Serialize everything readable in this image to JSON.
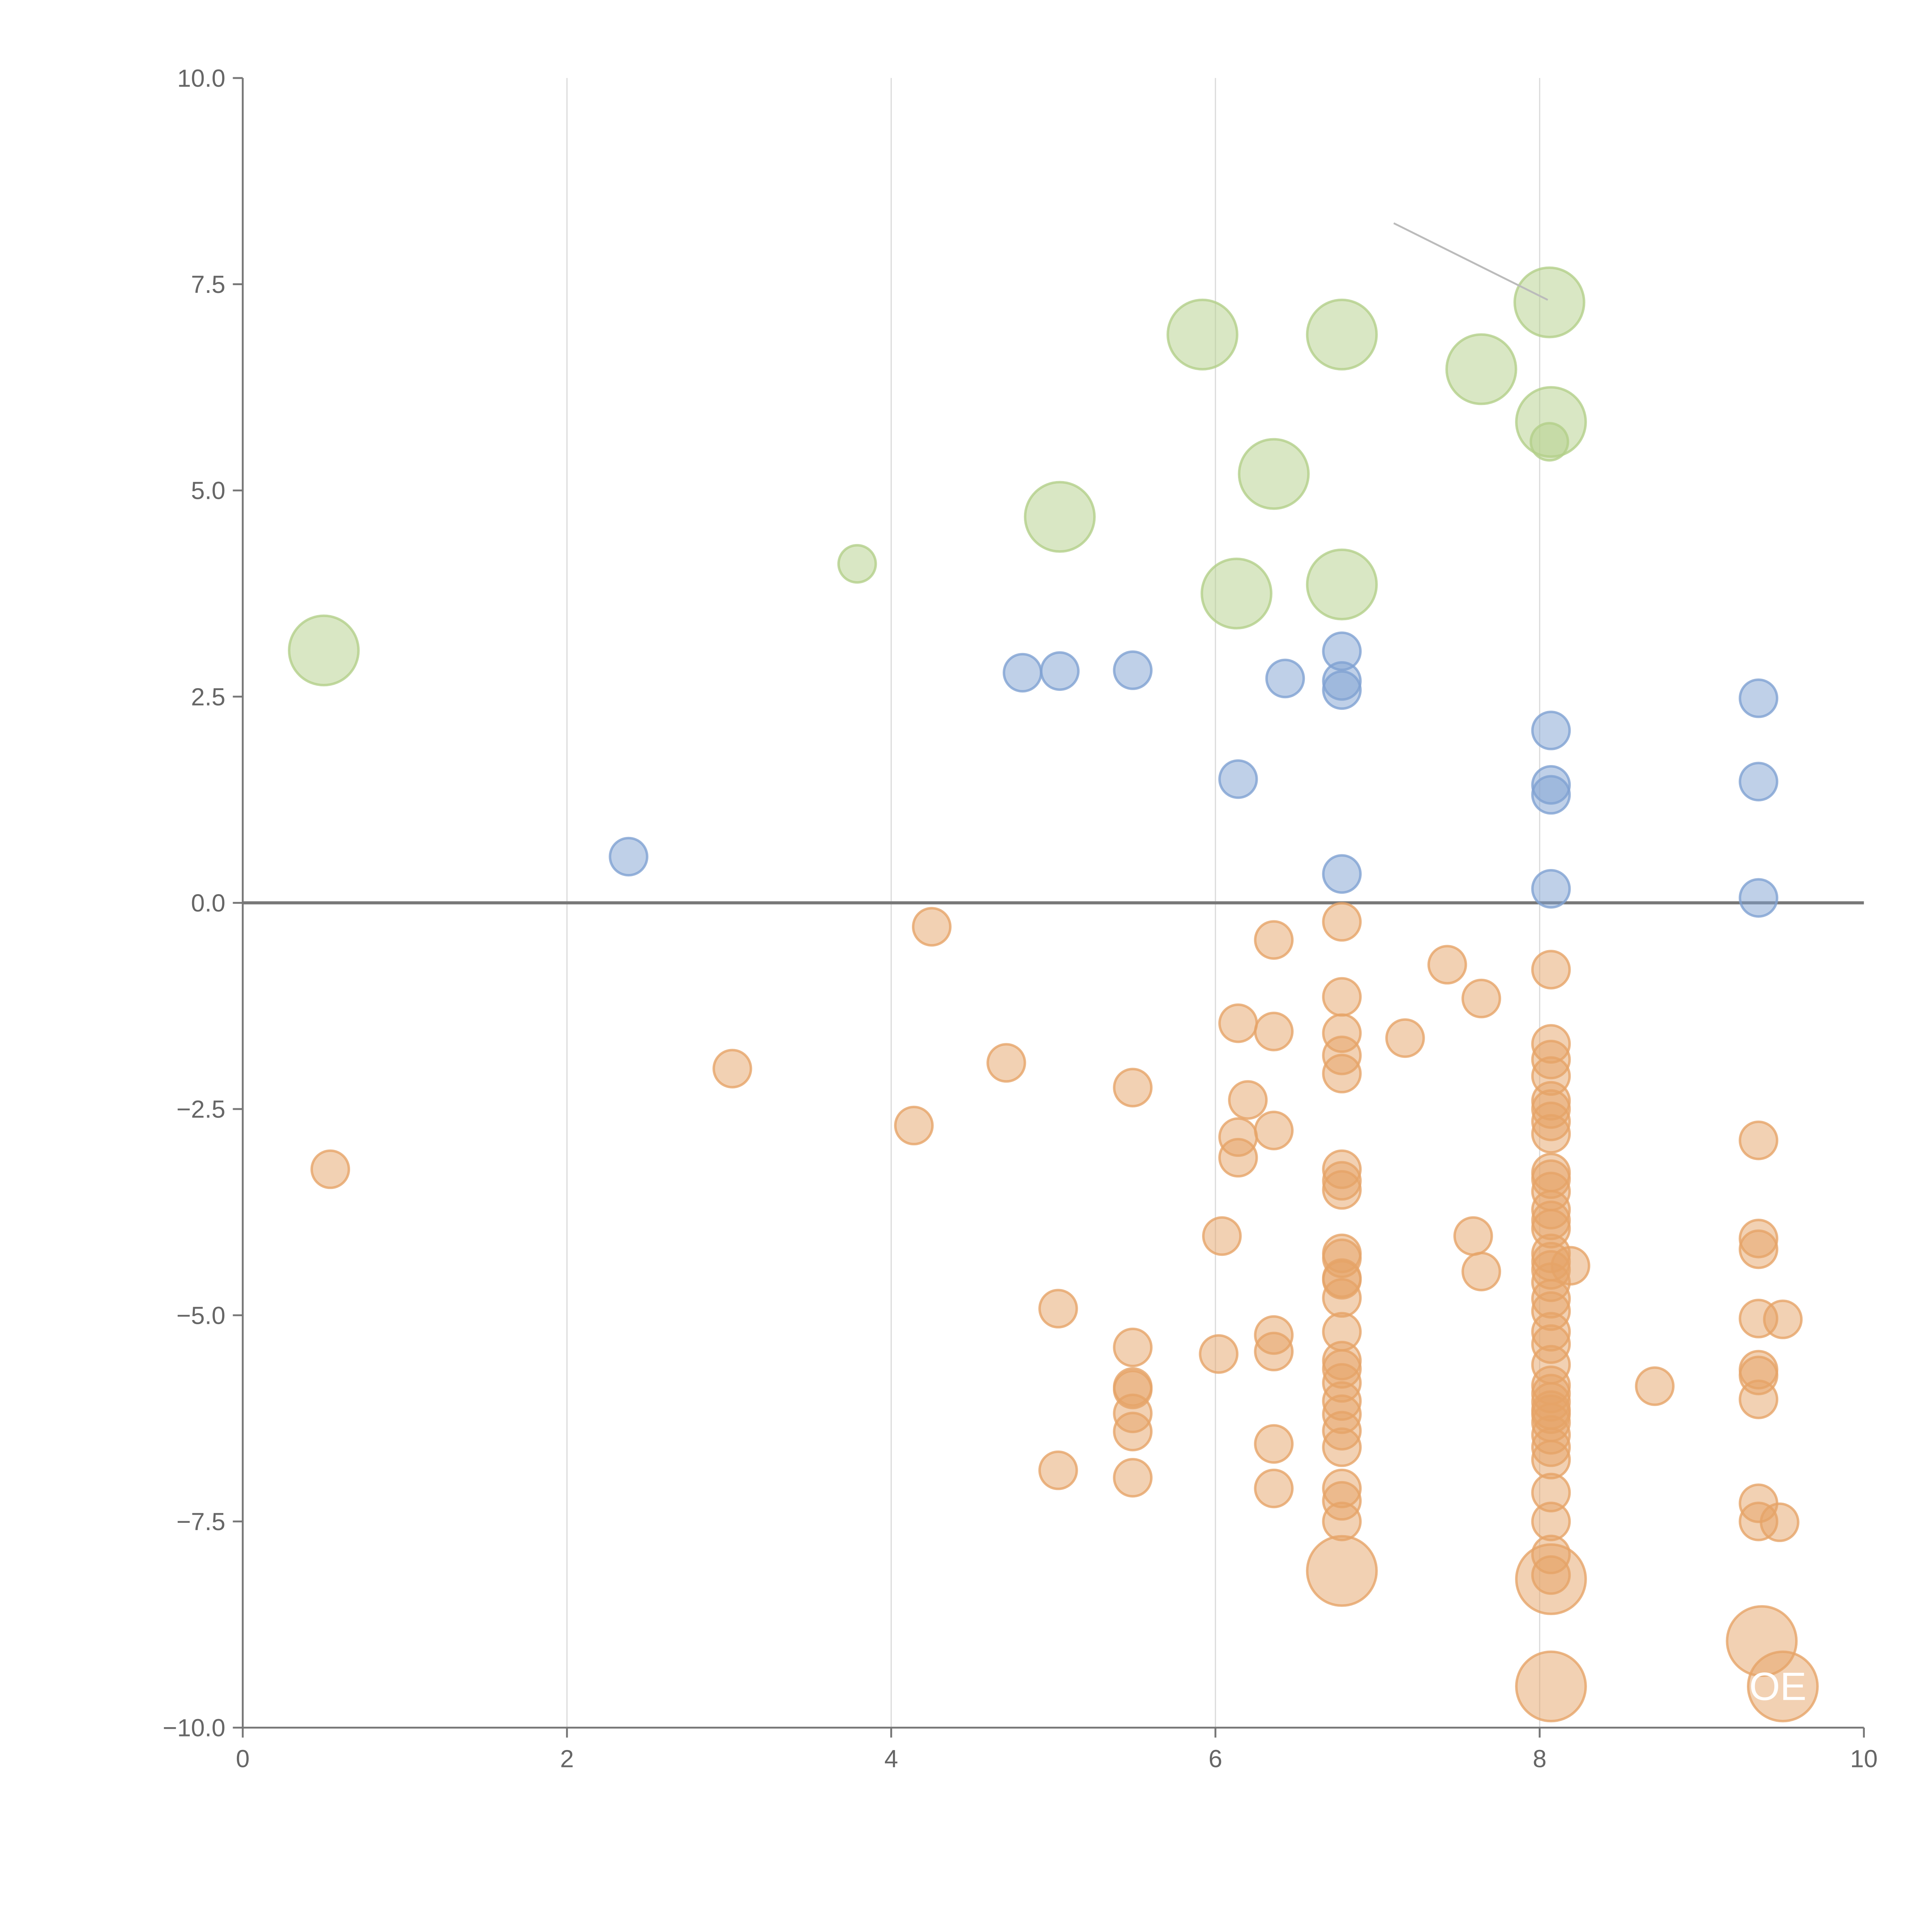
{
  "chart_data": {
    "type": "scatter",
    "title": "",
    "xlabel": "",
    "ylabel": "",
    "xlim": [
      0,
      10
    ],
    "ylim": [
      -10,
      10
    ],
    "grid": "vertical",
    "xticks": [
      0,
      2,
      4,
      6,
      8,
      10
    ],
    "xtick_labels": [
      "0",
      "2",
      "4",
      "6",
      "8",
      "10"
    ],
    "yticks": [
      10,
      7.5,
      5,
      2.5,
      0,
      -2.5,
      -5,
      -7.5,
      -10
    ],
    "ytick_labels": [
      "10.0",
      "7.5",
      "5.0",
      "2.5",
      "0.0",
      "−2.5",
      "−5.0",
      "−7.5",
      "−10.0"
    ],
    "series": [
      {
        "name": "green",
        "color": "#b3d08a",
        "points": [
          [
            0.5,
            3.06,
            2
          ],
          [
            3.79,
            4.11,
            1
          ],
          [
            5.04,
            4.68,
            2
          ],
          [
            5.92,
            6.89,
            2
          ],
          [
            6.78,
            6.89,
            2
          ],
          [
            6.13,
            3.75,
            2
          ],
          [
            6.36,
            5.2,
            2
          ],
          [
            6.78,
            3.86,
            2
          ],
          [
            7.64,
            6.47,
            2
          ],
          [
            8.06,
            7.28,
            2
          ],
          [
            8.07,
            5.83,
            2
          ],
          [
            8.06,
            5.59,
            1
          ]
        ]
      },
      {
        "name": "blue",
        "color": "#7fa1d2",
        "points": [
          [
            2.38,
            0.56,
            1
          ],
          [
            4.81,
            2.79,
            1
          ],
          [
            5.04,
            2.81,
            1
          ],
          [
            5.49,
            2.82,
            1
          ],
          [
            6.43,
            2.72,
            1
          ],
          [
            6.78,
            3.05,
            1
          ],
          [
            6.78,
            2.69,
            1
          ],
          [
            6.78,
            2.58,
            1
          ],
          [
            6.14,
            1.5,
            1
          ],
          [
            6.78,
            0.35,
            1
          ],
          [
            8.07,
            2.09,
            1
          ],
          [
            8.07,
            1.43,
            1
          ],
          [
            8.07,
            1.31,
            1
          ],
          [
            8.07,
            0.17,
            1
          ],
          [
            9.35,
            2.48,
            1
          ],
          [
            9.35,
            1.47,
            1
          ],
          [
            9.35,
            0.06,
            1
          ]
        ]
      },
      {
        "name": "orange",
        "color": "#e6a468",
        "points": [
          [
            0.54,
            -3.23,
            1
          ],
          [
            3.02,
            -2.01,
            1
          ],
          [
            4.14,
            -2.7,
            1
          ],
          [
            4.25,
            -0.29,
            1
          ],
          [
            4.71,
            -1.94,
            1
          ],
          [
            5.03,
            -4.92,
            1
          ],
          [
            5.03,
            -6.88,
            1
          ],
          [
            5.49,
            -2.24,
            1
          ],
          [
            5.49,
            -5.39,
            1
          ],
          [
            5.49,
            -5.87,
            1
          ],
          [
            5.49,
            -5.9,
            1
          ],
          [
            5.49,
            -6.19,
            1
          ],
          [
            5.49,
            -6.41,
            1
          ],
          [
            5.49,
            -6.97,
            1
          ],
          [
            6.04,
            -4.04,
            1
          ],
          [
            6.02,
            -5.47,
            1
          ],
          [
            6.14,
            -1.46,
            1
          ],
          [
            6.14,
            -2.84,
            1
          ],
          [
            6.14,
            -3.09,
            1
          ],
          [
            6.2,
            -2.39,
            1
          ],
          [
            6.36,
            -0.45,
            1
          ],
          [
            6.36,
            -1.56,
            1
          ],
          [
            6.36,
            -2.76,
            1
          ],
          [
            6.36,
            -5.24,
            1
          ],
          [
            6.36,
            -5.44,
            1
          ],
          [
            6.36,
            -6.56,
            1
          ],
          [
            6.36,
            -7.1,
            1
          ],
          [
            6.78,
            -0.23,
            1
          ],
          [
            6.78,
            -1.14,
            1
          ],
          [
            6.78,
            -1.58,
            1
          ],
          [
            6.78,
            -1.85,
            1
          ],
          [
            6.78,
            -2.07,
            1
          ],
          [
            6.78,
            -3.23,
            1
          ],
          [
            6.78,
            -3.37,
            1
          ],
          [
            6.78,
            -3.48,
            1
          ],
          [
            6.78,
            -4.25,
            1
          ],
          [
            6.78,
            -4.31,
            1
          ],
          [
            6.78,
            -4.55,
            1
          ],
          [
            6.78,
            -4.57,
            1
          ],
          [
            6.78,
            -4.79,
            1
          ],
          [
            6.78,
            -5.2,
            1
          ],
          [
            6.78,
            -5.55,
            1
          ],
          [
            6.78,
            -5.65,
            1
          ],
          [
            6.78,
            -5.82,
            1
          ],
          [
            6.78,
            -6.04,
            1
          ],
          [
            6.78,
            -6.2,
            1
          ],
          [
            6.78,
            -6.4,
            1
          ],
          [
            6.78,
            -6.6,
            1
          ],
          [
            6.78,
            -7.1,
            1
          ],
          [
            6.78,
            -7.25,
            1
          ],
          [
            6.78,
            -7.5,
            1
          ],
          [
            6.78,
            -8.1,
            2
          ],
          [
            7.17,
            -1.64,
            1
          ],
          [
            7.43,
            -0.75,
            1
          ],
          [
            7.59,
            -4.04,
            1
          ],
          [
            7.64,
            -1.16,
            1
          ],
          [
            7.64,
            -4.47,
            1
          ],
          [
            8.07,
            -0.81,
            1
          ],
          [
            8.07,
            -1.71,
            1
          ],
          [
            8.07,
            -1.9,
            1
          ],
          [
            8.07,
            -2.1,
            1
          ],
          [
            8.07,
            -2.4,
            1
          ],
          [
            8.07,
            -2.5,
            1
          ],
          [
            8.07,
            -2.65,
            1
          ],
          [
            8.07,
            -2.8,
            1
          ],
          [
            8.07,
            -3.27,
            1
          ],
          [
            8.07,
            -3.35,
            1
          ],
          [
            8.07,
            -3.5,
            1
          ],
          [
            8.07,
            -3.72,
            1
          ],
          [
            8.07,
            -3.85,
            1
          ],
          [
            8.07,
            -3.95,
            1
          ],
          [
            8.07,
            -4.25,
            1
          ],
          [
            8.07,
            -4.35,
            1
          ],
          [
            8.07,
            -4.45,
            1
          ],
          [
            8.07,
            -4.6,
            1
          ],
          [
            8.07,
            -4.8,
            1
          ],
          [
            8.07,
            -4.95,
            1
          ],
          [
            8.07,
            -5.2,
            1
          ],
          [
            8.07,
            -5.35,
            1
          ],
          [
            8.07,
            -5.6,
            1
          ],
          [
            8.07,
            -5.85,
            1
          ],
          [
            8.07,
            -5.95,
            1
          ],
          [
            8.07,
            -6.05,
            1
          ],
          [
            8.07,
            -6.15,
            1
          ],
          [
            8.07,
            -6.2,
            1
          ],
          [
            8.07,
            -6.3,
            1
          ],
          [
            8.07,
            -6.45,
            1
          ],
          [
            8.07,
            -6.6,
            1
          ],
          [
            8.07,
            -6.75,
            1
          ],
          [
            8.07,
            -7.15,
            1
          ],
          [
            8.07,
            -7.5,
            1
          ],
          [
            8.07,
            -7.9,
            1
          ],
          [
            8.07,
            -8.15,
            1
          ],
          [
            8.07,
            -8.2,
            2
          ],
          [
            8.07,
            -9.5,
            2
          ],
          [
            8.19,
            -4.4,
            1
          ],
          [
            8.71,
            -5.86,
            1
          ],
          [
            9.35,
            -2.88,
            1
          ],
          [
            9.35,
            -4.07,
            1
          ],
          [
            9.35,
            -4.2,
            1
          ],
          [
            9.35,
            -5.04,
            1
          ],
          [
            9.35,
            -5.66,
            1
          ],
          [
            9.35,
            -5.73,
            1
          ],
          [
            9.35,
            -6.02,
            1
          ],
          [
            9.35,
            -7.28,
            1
          ],
          [
            9.35,
            -7.5,
            1
          ],
          [
            9.37,
            -8.95,
            2
          ],
          [
            9.5,
            -5.05,
            1
          ],
          [
            9.48,
            -7.51,
            1
          ],
          [
            9.5,
            -9.5,
            2
          ]
        ]
      }
    ],
    "annotations": [
      {
        "text": "OE",
        "x": 9.5,
        "y": -9.5
      }
    ],
    "leader_line": {
      "from": [
        7.1,
        8.24
      ],
      "to": [
        8.05,
        7.31
      ]
    }
  }
}
